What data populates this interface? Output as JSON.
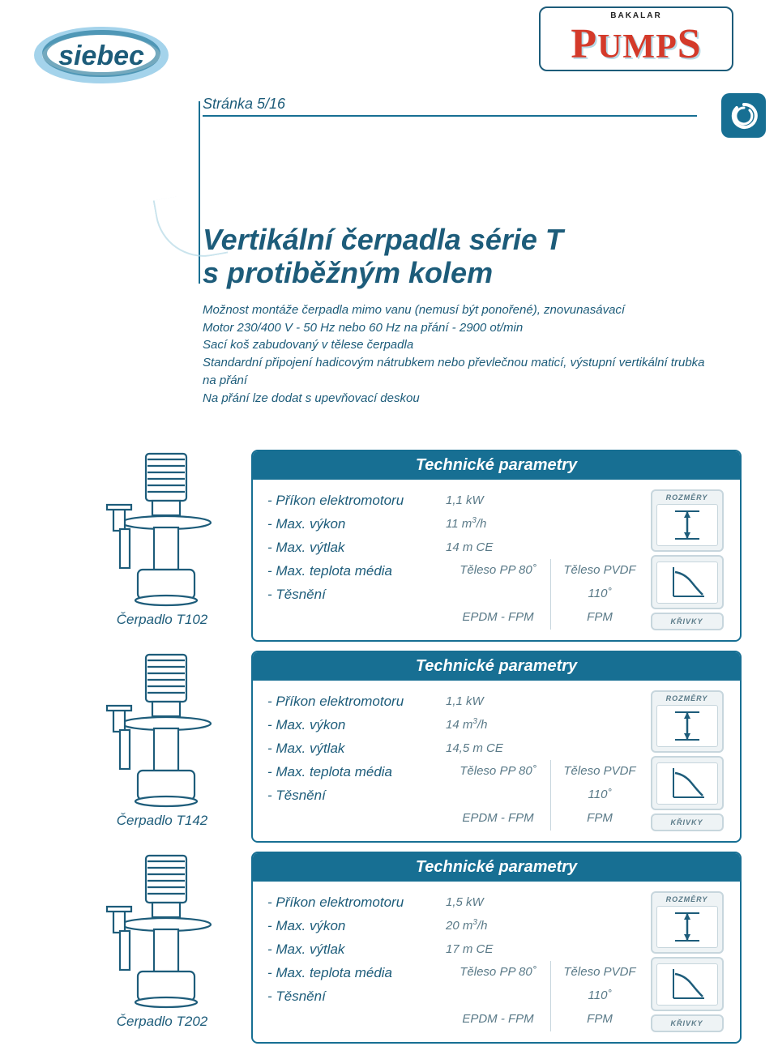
{
  "colors": {
    "primary": "#176f93",
    "text": "#1d5c7a",
    "muted": "#5a7a88",
    "accent_red": "#d43a2a",
    "panel_bg": "#eef3f5",
    "panel_border": "#c7d6dd",
    "light_blue": "#b5d9e6"
  },
  "logos": {
    "left_brand": "siebec",
    "right_brand_small": "BAKALAR",
    "right_brand_main": "PumpS"
  },
  "page_marker": "Stránka 5/16",
  "corner_icon": "swirl-icon",
  "title": {
    "line1": "Vertikální čerpadla série T",
    "line2": "s protiběžným kolem"
  },
  "intro_lines": [
    "Možnost montáže čerpadla mimo vanu (nemusí být ponořené), znovunasávací",
    "Motor 230/400 V - 50 Hz nebo 60 Hz na přání - 2900 ot/min",
    "Sací koš zabudovaný v tělese čerpadla",
    "Standardní připojení hadicovým nátrubkem nebo převlečnou maticí, výstupní vertikální trubka na přání",
    "Na přání lze dodat s upevňovací deskou"
  ],
  "param_header": "Technické parametry",
  "param_labels": {
    "power": "-  Příkon elektromotoru",
    "flow": "-  Max. výkon",
    "head": "-  Max. výtlak",
    "temp": "-  Max. teplota média",
    "seal": "-  Těsnění"
  },
  "icon_labels": {
    "dims": "ROZMĚRY",
    "curves": "KŘIVKY"
  },
  "pumps": [
    {
      "model": "Čerpadlo  T102",
      "power": "1,1 kW",
      "flow": "11 m³/h",
      "head": "14 m CE",
      "temp_a": "Těleso  PP  80˚",
      "temp_b": "Těleso  PVDF  110˚",
      "seal_a": "EPDM  -  FPM",
      "seal_b": "FPM"
    },
    {
      "model": "Čerpadlo T142",
      "power": "1,1 kW",
      "flow": "14 m³/h",
      "head": "14,5 m CE",
      "temp_a": "Těleso  PP  80˚",
      "temp_b": "Těleso  PVDF  110˚",
      "seal_a": "EPDM  -  FPM",
      "seal_b": "FPM"
    },
    {
      "model": "Čerpadlo  T202",
      "power": "1,5 kW",
      "flow": "20 m³/h",
      "head": "17 m CE",
      "temp_a": "Těleso  PP  80˚",
      "temp_b": "Těleso  PVDF  110˚",
      "seal_a": "EPDM  -  FPM",
      "seal_b": "FPM"
    }
  ]
}
